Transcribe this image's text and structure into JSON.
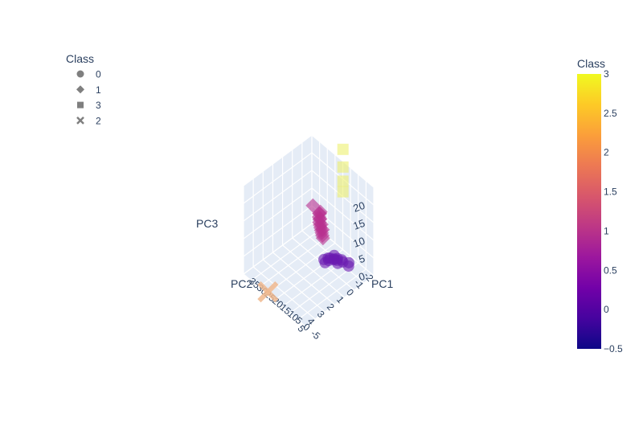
{
  "chart_data": {
    "type": "scatter3d",
    "axes": {
      "x": {
        "label": "PC1",
        "ticks": [
          "-5",
          "0",
          "5",
          "10",
          "15",
          "20",
          "25",
          "30",
          "35"
        ]
      },
      "y": {
        "label": "PC2",
        "ticks": [
          "-2",
          "-1",
          "0",
          "1",
          "2",
          "3",
          "4",
          "5"
        ]
      },
      "z": {
        "label": "PC3",
        "ticks": [
          "0",
          "5",
          "10",
          "15",
          "20"
        ]
      }
    },
    "legend": {
      "title": "Class",
      "placement": "top-left",
      "items": [
        {
          "label": "0",
          "symbol": "circle"
        },
        {
          "label": "1",
          "symbol": "diamond"
        },
        {
          "label": "3",
          "symbol": "square"
        },
        {
          "label": "2",
          "symbol": "x"
        }
      ]
    },
    "colorbar": {
      "title": "Class",
      "range": [
        -0.5,
        3
      ],
      "ticks": [
        "3",
        "2.5",
        "2",
        "1.5",
        "1",
        "0.5",
        "0",
        "−0.5"
      ],
      "colors": [
        "#0d0887",
        "#46039f",
        "#7201a8",
        "#9c179e",
        "#bd3786",
        "#d8576b",
        "#ed7953",
        "#fb9f3a",
        "#fdca26",
        "#f0f921"
      ]
    },
    "series": [
      {
        "class": "0",
        "symbol": "circle",
        "color": "#6a1ab0",
        "points": [
          [
            30,
            1,
            9
          ],
          [
            31,
            1.2,
            9.5
          ],
          [
            29,
            1.5,
            9.8
          ],
          [
            32,
            1,
            9.3
          ],
          [
            28,
            1.8,
            9.6
          ],
          [
            30,
            2,
            9.8
          ],
          [
            31,
            0.8,
            9.1
          ],
          [
            29,
            1.3,
            9.4
          ],
          [
            33,
            1.1,
            9
          ],
          [
            30,
            1.6,
            9.7
          ],
          [
            32,
            0.5,
            8.5
          ],
          [
            34,
            0.7,
            9
          ],
          [
            35,
            0.2,
            8.2
          ],
          [
            33,
            1.5,
            12
          ],
          [
            36,
            0.4,
            8
          ]
        ]
      },
      {
        "class": "1",
        "symbol": "diamond",
        "color": "#b8308f",
        "points": [
          [
            15,
            0,
            15
          ],
          [
            16,
            0.3,
            15.5
          ],
          [
            17,
            0.5,
            15.2
          ],
          [
            18,
            0.6,
            15.1
          ],
          [
            19,
            0.8,
            15
          ],
          [
            20,
            0.9,
            14.8
          ],
          [
            21,
            1,
            14.6
          ],
          [
            22,
            1.1,
            14.4
          ],
          [
            23,
            1.2,
            14.2
          ],
          [
            24,
            1.3,
            14
          ],
          [
            17,
            0.4,
            16
          ],
          [
            19,
            0.7,
            15.8
          ],
          [
            21,
            0.9,
            15.3
          ],
          [
            23,
            1.1,
            14.9
          ],
          [
            25,
            1.4,
            13.8
          ],
          [
            10,
            0,
            15
          ]
        ]
      },
      {
        "class": "3",
        "symbol": "square",
        "color": "#ecf06e",
        "points": [
          [
            18,
            -2,
            30
          ],
          [
            18,
            -2,
            25
          ],
          [
            18,
            -2,
            21
          ],
          [
            18,
            -2,
            18
          ]
        ]
      },
      {
        "class": "2",
        "symbol": "x",
        "color": "#f0b98e",
        "points": [
          [
            10,
            5,
            0
          ]
        ]
      }
    ]
  }
}
